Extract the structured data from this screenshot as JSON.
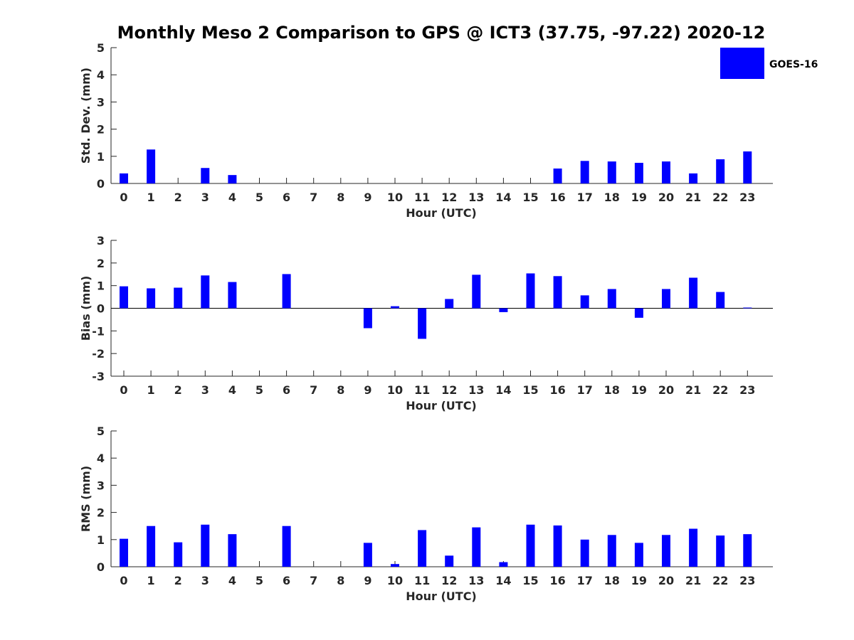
{
  "chart_data": {
    "title": "Monthly Meso 2 Comparison to GPS @ ICT3 (37.75, -97.22) 2020-12",
    "legend": {
      "label": "GOES-16",
      "color": "#0000ff",
      "position": "top-right"
    },
    "hours": [
      0,
      1,
      2,
      3,
      4,
      5,
      6,
      7,
      8,
      9,
      10,
      11,
      12,
      13,
      14,
      15,
      16,
      17,
      18,
      19,
      20,
      21,
      22,
      23
    ],
    "hour_labels": [
      "0",
      "1",
      "2",
      "3",
      "4",
      "5",
      "6",
      "7",
      "8",
      "9",
      "10",
      "11",
      "12",
      "13",
      "14",
      "15",
      "16",
      "17",
      "18",
      "19",
      "20",
      "21",
      "22",
      "23"
    ],
    "panels": [
      {
        "type": "bar",
        "ylabel": "Std. Dev. (mm)",
        "xlabel": "Hour (UTC)",
        "ylim": [
          0,
          5
        ],
        "yticks": [
          0,
          1,
          2,
          3,
          4,
          5
        ],
        "ytick_labels": [
          "0",
          "1",
          "2",
          "3",
          "4",
          "5"
        ],
        "series": [
          {
            "name": "GOES-16",
            "values": [
              0.37,
              1.25,
              null,
              0.57,
              0.31,
              null,
              null,
              null,
              null,
              null,
              null,
              null,
              null,
              null,
              null,
              null,
              0.55,
              0.83,
              0.81,
              0.76,
              0.81,
              0.37,
              0.89,
              1.18
            ]
          }
        ]
      },
      {
        "type": "bar",
        "ylabel": "Bias (mm)",
        "xlabel": "Hour (UTC)",
        "ylim": [
          -3,
          3
        ],
        "yticks": [
          -3,
          -2,
          -1,
          0,
          1,
          2,
          3
        ],
        "ytick_labels": [
          "-3",
          "-2",
          "-1",
          "0",
          "1",
          "2",
          "3"
        ],
        "series": [
          {
            "name": "GOES-16",
            "values": [
              0.97,
              0.88,
              0.91,
              1.45,
              1.16,
              null,
              1.51,
              null,
              null,
              -0.88,
              0.09,
              -1.35,
              0.41,
              1.48,
              -0.17,
              1.54,
              1.42,
              0.57,
              0.85,
              -0.42,
              0.85,
              1.35,
              0.72,
              0.03
            ]
          }
        ]
      },
      {
        "type": "bar",
        "ylabel": "RMS (mm)",
        "xlabel": "Hour (UTC)",
        "ylim": [
          0,
          5
        ],
        "yticks": [
          0,
          1,
          2,
          3,
          4,
          5
        ],
        "ytick_labels": [
          "0",
          "1",
          "2",
          "3",
          "4",
          "5"
        ],
        "series": [
          {
            "name": "GOES-16",
            "values": [
              1.03,
              1.5,
              0.9,
              1.55,
              1.2,
              null,
              1.5,
              null,
              null,
              0.88,
              0.1,
              1.35,
              0.41,
              1.45,
              0.17,
              1.55,
              1.52,
              1.0,
              1.17,
              0.88,
              1.17,
              1.4,
              1.15,
              1.2
            ]
          }
        ]
      }
    ]
  }
}
